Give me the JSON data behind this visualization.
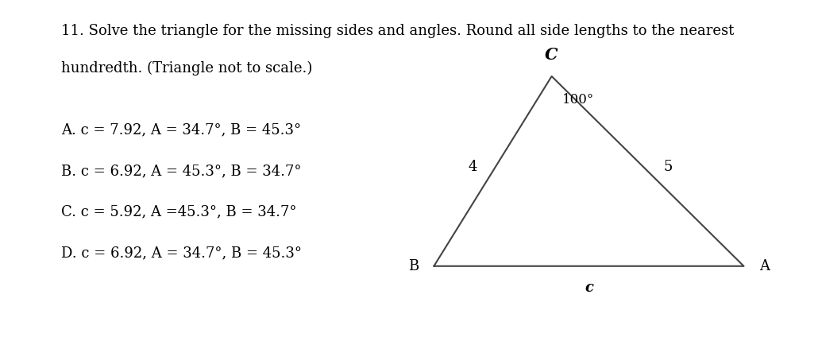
{
  "title_line1": "11. Solve the triangle for the missing sides and angles. Round all side lengths to the nearest",
  "title_line2": "hundredth. (Triangle not to scale.)",
  "options": [
    [
      "A.",
      " c = 7.92, A = 34.7°, B = 45.3°"
    ],
    [
      "B.",
      " c = 6.92, A = 45.3°, B = 34.7°"
    ],
    [
      "C.",
      " c = 5.92, A =45.3°, B = 34.7°"
    ],
    [
      "D.",
      " c = 6.92, A = 34.7°, B = 45.3°"
    ]
  ],
  "triangle": {
    "B": [
      0.0,
      0.0
    ],
    "A": [
      1.0,
      0.0
    ],
    "C": [
      0.38,
      0.62
    ],
    "label_C": "C",
    "label_B": "B",
    "label_A": "A",
    "label_BC": "4",
    "label_CA": "5",
    "label_BA": "c",
    "angle_label": "100°"
  },
  "bg_color": "#ffffff",
  "text_color": "#000000",
  "font_size_title": 13,
  "font_size_options": 13,
  "font_size_triangle": 13
}
